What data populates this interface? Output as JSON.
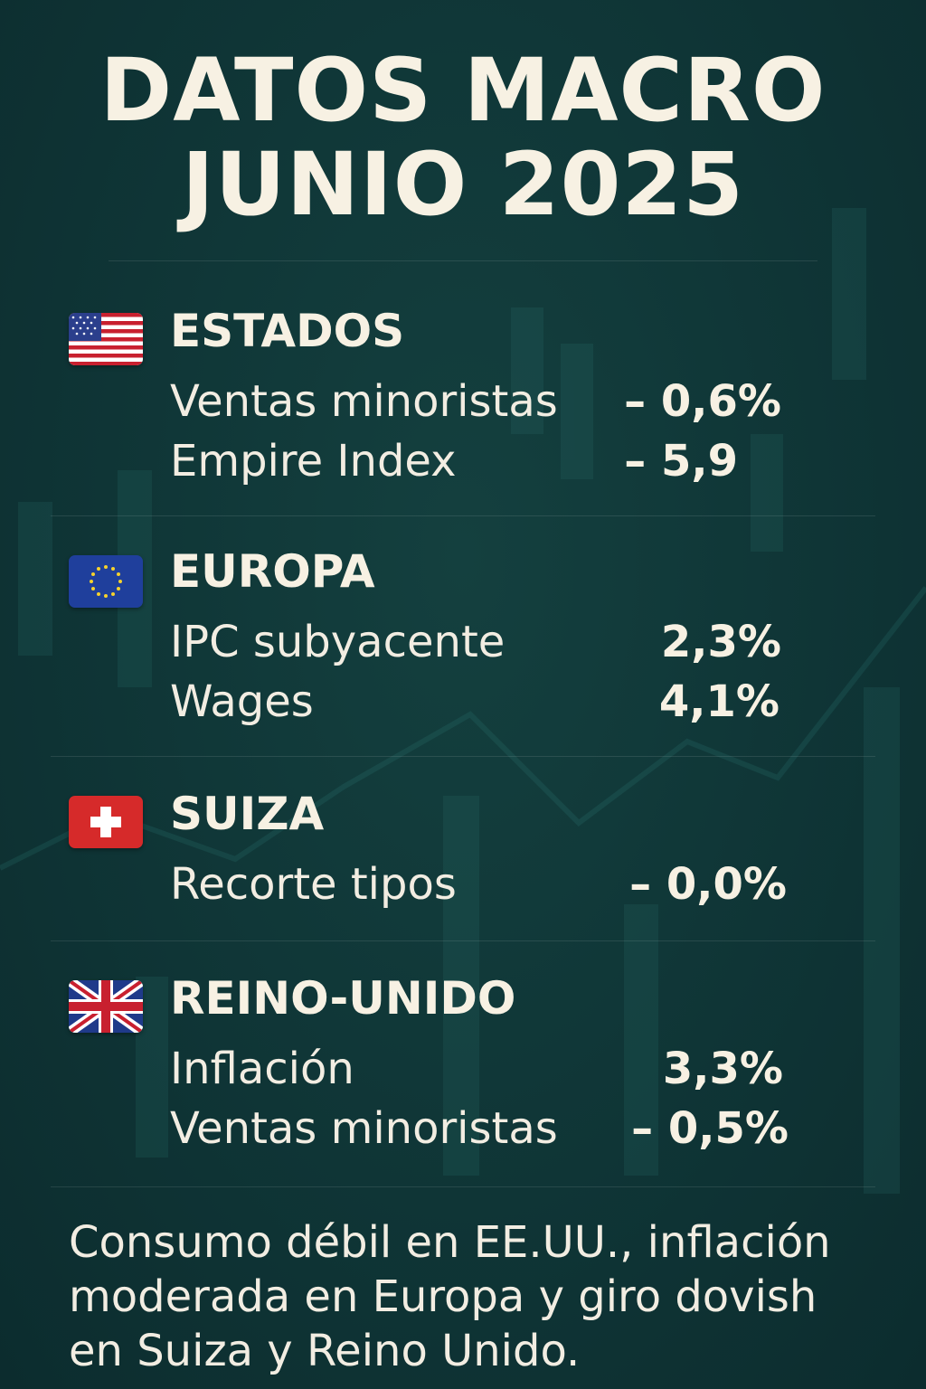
{
  "title": {
    "line1": "DATOS MACRO",
    "line2": "JUNIO 2025"
  },
  "sections": [
    {
      "country": "ESTADOS",
      "flag": "us-flag-icon",
      "rows": [
        {
          "label": "Ventas minoristas",
          "value": "– 0,6%"
        },
        {
          "label": "Empire Index",
          "value": "– 5,9"
        }
      ]
    },
    {
      "country": "EUROPA",
      "flag": "eu-flag-icon",
      "rows": [
        {
          "label": "IPC subyacente",
          "value": "2,3%"
        },
        {
          "label": "Wages",
          "value": "4,1%"
        }
      ]
    },
    {
      "country": "SUIZA",
      "flag": "swiss-flag-icon",
      "rows": [
        {
          "label": "Recorte tipos",
          "value": "– 0,0%"
        }
      ]
    },
    {
      "country": "REINO-UNIDO",
      "flag": "uk-flag-icon",
      "rows": [
        {
          "label": "Inflación",
          "value": "3,3%"
        },
        {
          "label": "Ventas minoristas",
          "value": "– 0,5%"
        }
      ]
    }
  ],
  "footer": "Consumo débil en EE.UU., inflación moderada en Europa y giro dovish en Suiza y Reino Unido.",
  "colors": {
    "background": "#0f3536",
    "text": "#f7f1e3"
  }
}
